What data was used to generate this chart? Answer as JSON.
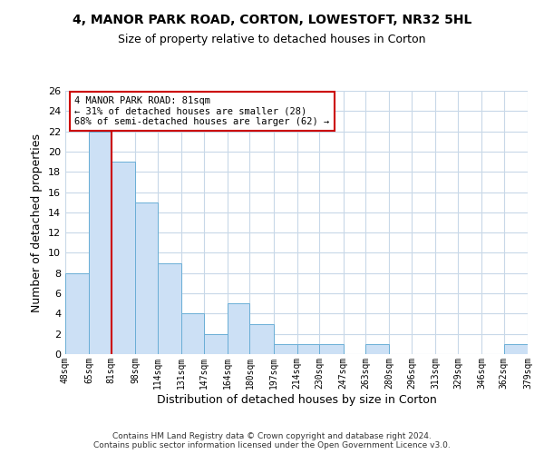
{
  "title": "4, MANOR PARK ROAD, CORTON, LOWESTOFT, NR32 5HL",
  "subtitle": "Size of property relative to detached houses in Corton",
  "xlabel": "Distribution of detached houses by size in Corton",
  "ylabel": "Number of detached properties",
  "bin_labels": [
    "48sqm",
    "65sqm",
    "81sqm",
    "98sqm",
    "114sqm",
    "131sqm",
    "147sqm",
    "164sqm",
    "180sqm",
    "197sqm",
    "214sqm",
    "230sqm",
    "247sqm",
    "263sqm",
    "280sqm",
    "296sqm",
    "313sqm",
    "329sqm",
    "346sqm",
    "362sqm",
    "379sqm"
  ],
  "bin_edges": [
    48,
    65,
    81,
    98,
    114,
    131,
    147,
    164,
    180,
    197,
    214,
    230,
    247,
    263,
    280,
    296,
    313,
    329,
    346,
    362,
    379
  ],
  "counts": [
    8,
    22,
    19,
    15,
    9,
    4,
    2,
    5,
    3,
    1,
    1,
    1,
    0,
    1,
    0,
    0,
    0,
    0,
    0,
    1
  ],
  "bar_color": "#cce0f5",
  "bar_edge_color": "#6aaed6",
  "marker_value": 81,
  "marker_color": "#cc0000",
  "annotation_title": "4 MANOR PARK ROAD: 81sqm",
  "annotation_line1": "← 31% of detached houses are smaller (28)",
  "annotation_line2": "68% of semi-detached houses are larger (62) →",
  "annotation_box_color": "#cc0000",
  "ylim": [
    0,
    26
  ],
  "yticks": [
    0,
    2,
    4,
    6,
    8,
    10,
    12,
    14,
    16,
    18,
    20,
    22,
    24,
    26
  ],
  "footer_line1": "Contains HM Land Registry data © Crown copyright and database right 2024.",
  "footer_line2": "Contains public sector information licensed under the Open Government Licence v3.0.",
  "background_color": "#ffffff",
  "grid_color": "#c8d8e8"
}
